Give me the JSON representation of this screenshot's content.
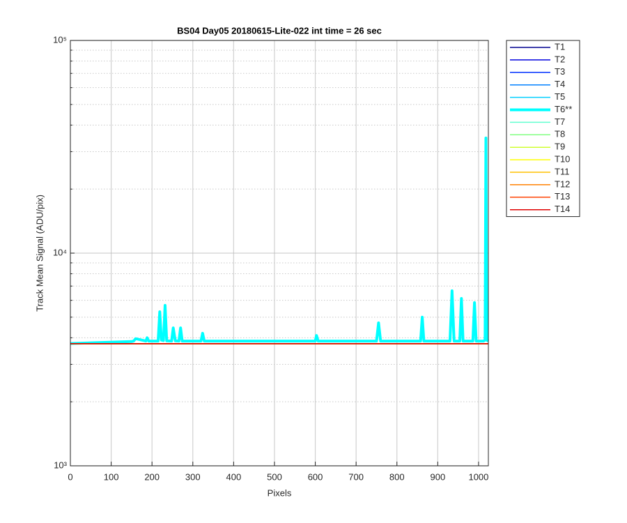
{
  "chart_data": {
    "type": "line",
    "title": "BS04 Day05 20180615-Lite-022 int time = 26 sec",
    "x_label": "Pixels",
    "y_label": "Track Mean Signal (ADU/pix)",
    "y_scale": "log",
    "grid": true,
    "legend_position": "outside-right",
    "xlim": [
      0,
      1024
    ],
    "xticks": [
      0,
      100,
      200,
      300,
      400,
      500,
      600,
      700,
      800,
      900,
      1000
    ],
    "ylim": [
      1000,
      100000
    ],
    "yticks": [
      {
        "value": 1000,
        "label": "10³"
      },
      {
        "value": 10000,
        "label": "10⁴"
      },
      {
        "value": 100000,
        "label": "10⁵"
      }
    ],
    "yminorticks": [
      2000,
      3000,
      4000,
      5000,
      6000,
      7000,
      8000,
      9000,
      20000,
      30000,
      40000,
      50000,
      60000,
      70000,
      80000,
      90000
    ],
    "x": [
      0,
      150,
      155,
      160,
      185,
      188,
      192,
      215,
      219,
      223,
      228,
      232,
      236,
      248,
      252,
      257,
      266,
      270,
      274,
      320,
      324,
      328,
      600,
      603,
      607,
      750,
      755,
      760,
      858,
      862,
      866,
      930,
      935,
      940,
      954,
      958,
      962,
      986,
      990,
      994,
      1012,
      1016,
      1018,
      1020,
      1024
    ],
    "series": [
      {
        "name": "T1",
        "color": "#00008f",
        "line_width": 1.5,
        "values": [
          3750,
          3750,
          3750,
          3750,
          3750,
          3750,
          3750,
          3750,
          3750,
          3750,
          3750,
          3750,
          3750,
          3750,
          3750,
          3750,
          3750,
          3750,
          3750,
          3750,
          3750,
          3750,
          3750,
          3750,
          3750,
          3750,
          3750,
          3750,
          3750,
          3750,
          3750,
          3750,
          3750,
          3750,
          3750,
          3750,
          3750,
          3750,
          3750,
          3750,
          3750,
          3750,
          3750,
          3750,
          3750
        ]
      },
      {
        "name": "T2",
        "color": "#0000df",
        "line_width": 1.5,
        "values": [
          3750,
          3750,
          3750,
          3750,
          3750,
          3750,
          3750,
          3750,
          3750,
          3750,
          3750,
          3750,
          3750,
          3750,
          3750,
          3750,
          3750,
          3750,
          3750,
          3750,
          3750,
          3750,
          3750,
          3750,
          3750,
          3750,
          3750,
          3750,
          3750,
          3750,
          3750,
          3750,
          3750,
          3750,
          3750,
          3750,
          3750,
          3750,
          3750,
          3750,
          3750,
          3750,
          3750,
          3750,
          3750
        ]
      },
      {
        "name": "T3",
        "color": "#0030ff",
        "line_width": 1.5,
        "values": [
          3750,
          3750,
          3750,
          3750,
          3750,
          3750,
          3750,
          3750,
          3750,
          3750,
          3750,
          3750,
          3750,
          3750,
          3750,
          3750,
          3750,
          3750,
          3750,
          3750,
          3750,
          3750,
          3750,
          3750,
          3750,
          3750,
          3750,
          3750,
          3750,
          3750,
          3750,
          3750,
          3750,
          3750,
          3750,
          3750,
          3750,
          3750,
          3750,
          3750,
          3750,
          3750,
          3750,
          3750,
          3750
        ]
      },
      {
        "name": "T4",
        "color": "#0080ff",
        "line_width": 1.5,
        "values": [
          3750,
          3750,
          3750,
          3750,
          3750,
          3750,
          3750,
          3750,
          3750,
          3750,
          3750,
          3750,
          3750,
          3750,
          3750,
          3750,
          3750,
          3750,
          3750,
          3750,
          3750,
          3750,
          3750,
          3750,
          3750,
          3750,
          3750,
          3750,
          3750,
          3750,
          3750,
          3750,
          3750,
          3750,
          3750,
          3750,
          3750,
          3750,
          3750,
          3750,
          3750,
          3750,
          3750,
          3750,
          3750
        ]
      },
      {
        "name": "T5",
        "color": "#00cfff",
        "line_width": 1.5,
        "values": [
          3750,
          3750,
          3750,
          3750,
          3750,
          3750,
          3750,
          3750,
          3750,
          3750,
          3750,
          3750,
          3750,
          3750,
          3750,
          3750,
          3750,
          3750,
          3750,
          3750,
          3750,
          3750,
          3750,
          3750,
          3750,
          3750,
          3750,
          3750,
          3750,
          3750,
          3750,
          3750,
          3750,
          3750,
          3750,
          3750,
          3750,
          3750,
          3750,
          3750,
          3750,
          3750,
          3750,
          3750,
          3750
        ]
      },
      {
        "name": "T6**",
        "color": "#00ffff",
        "line_width": 4,
        "values": [
          3760,
          3840,
          3860,
          3960,
          3860,
          4000,
          3860,
          3860,
          5300,
          3900,
          3880,
          5680,
          3870,
          3860,
          4450,
          3870,
          3860,
          4450,
          3860,
          3860,
          4200,
          3860,
          3860,
          4100,
          3860,
          3860,
          4700,
          3860,
          3860,
          5000,
          3860,
          3860,
          6650,
          3860,
          3860,
          6120,
          3860,
          3860,
          5850,
          3860,
          3860,
          3900,
          34800,
          3900,
          3860
        ]
      },
      {
        "name": "T7",
        "color": "#60ffcf",
        "line_width": 1.5,
        "values": [
          3750,
          3750,
          3750,
          3750,
          3750,
          3750,
          3750,
          3750,
          3750,
          3750,
          3750,
          3750,
          3750,
          3750,
          3750,
          3750,
          3750,
          3750,
          3750,
          3750,
          3750,
          3750,
          3750,
          3750,
          3750,
          3750,
          3750,
          3750,
          3750,
          3750,
          3750,
          3750,
          3750,
          3750,
          3750,
          3750,
          3750,
          3750,
          3750,
          3750,
          3750,
          3750,
          3750,
          3750,
          3750
        ]
      },
      {
        "name": "T8",
        "color": "#80ff80",
        "line_width": 1.5,
        "values": [
          3750,
          3750,
          3750,
          3750,
          3750,
          3750,
          3750,
          3750,
          3750,
          3750,
          3750,
          3750,
          3750,
          3750,
          3750,
          3750,
          3750,
          3750,
          3750,
          3750,
          3750,
          3750,
          3750,
          3750,
          3750,
          3750,
          3750,
          3750,
          3750,
          3750,
          3750,
          3750,
          3750,
          3750,
          3750,
          3750,
          3750,
          3750,
          3750,
          3750,
          3750,
          3750,
          3750,
          3750,
          3750
        ]
      },
      {
        "name": "T9",
        "color": "#cfff30",
        "line_width": 1.5,
        "values": [
          3750,
          3750,
          3750,
          3750,
          3750,
          3750,
          3750,
          3750,
          3750,
          3750,
          3750,
          3750,
          3750,
          3750,
          3750,
          3750,
          3750,
          3750,
          3750,
          3750,
          3750,
          3750,
          3750,
          3750,
          3750,
          3750,
          3750,
          3750,
          3750,
          3750,
          3750,
          3750,
          3750,
          3750,
          3750,
          3750,
          3750,
          3750,
          3750,
          3750,
          3750,
          3750,
          3750,
          3750,
          3750
        ]
      },
      {
        "name": "T10",
        "color": "#ffff00",
        "line_width": 1.5,
        "values": [
          3750,
          3750,
          3750,
          3750,
          3750,
          3750,
          3750,
          3750,
          3750,
          3750,
          3750,
          3750,
          3750,
          3750,
          3750,
          3750,
          3750,
          3750,
          3750,
          3750,
          3750,
          3750,
          3750,
          3750,
          3750,
          3750,
          3750,
          3750,
          3750,
          3750,
          3750,
          3750,
          3750,
          3750,
          3750,
          3750,
          3750,
          3750,
          3750,
          3750,
          3750,
          3750,
          3750,
          3750,
          3750
        ]
      },
      {
        "name": "T11",
        "color": "#ffc000",
        "line_width": 1.5,
        "values": [
          3750,
          3750,
          3750,
          3750,
          3750,
          3750,
          3750,
          3750,
          3750,
          3750,
          3750,
          3750,
          3750,
          3750,
          3750,
          3750,
          3750,
          3750,
          3750,
          3750,
          3750,
          3750,
          3750,
          3750,
          3750,
          3750,
          3750,
          3750,
          3750,
          3750,
          3750,
          3750,
          3750,
          3750,
          3750,
          3750,
          3750,
          3750,
          3750,
          3750,
          3750,
          3750,
          3750,
          3750,
          3750
        ]
      },
      {
        "name": "T12",
        "color": "#ff8000",
        "line_width": 1.5,
        "values": [
          3750,
          3750,
          3750,
          3750,
          3750,
          3750,
          3750,
          3750,
          3750,
          3750,
          3750,
          3750,
          3750,
          3750,
          3750,
          3750,
          3750,
          3750,
          3750,
          3750,
          3750,
          3750,
          3750,
          3750,
          3750,
          3750,
          3750,
          3750,
          3750,
          3750,
          3750,
          3750,
          3750,
          3750,
          3750,
          3750,
          3750,
          3750,
          3750,
          3750,
          3750,
          3750,
          3750,
          3750,
          3750
        ]
      },
      {
        "name": "T13",
        "color": "#ff4000",
        "line_width": 1.5,
        "values": [
          3750,
          3750,
          3750,
          3750,
          3750,
          3750,
          3750,
          3750,
          3750,
          3750,
          3750,
          3750,
          3750,
          3750,
          3750,
          3750,
          3750,
          3750,
          3750,
          3750,
          3750,
          3750,
          3750,
          3750,
          3750,
          3750,
          3750,
          3750,
          3750,
          3750,
          3750,
          3750,
          3750,
          3750,
          3750,
          3750,
          3750,
          3750,
          3750,
          3750,
          3750,
          3750,
          3750,
          3750,
          3750
        ]
      },
      {
        "name": "T14",
        "color": "#df0000",
        "line_width": 1.5,
        "values": [
          3750,
          3750,
          3750,
          3750,
          3750,
          3750,
          3750,
          3750,
          3750,
          3750,
          3750,
          3750,
          3750,
          3750,
          3750,
          3750,
          3750,
          3750,
          3750,
          3750,
          3750,
          3750,
          3750,
          3750,
          3750,
          3750,
          3750,
          3750,
          3750,
          3750,
          3750,
          3750,
          3750,
          3750,
          3750,
          3750,
          3750,
          3750,
          3750,
          3750,
          3750,
          3750,
          3750,
          3750,
          3750
        ]
      }
    ]
  }
}
